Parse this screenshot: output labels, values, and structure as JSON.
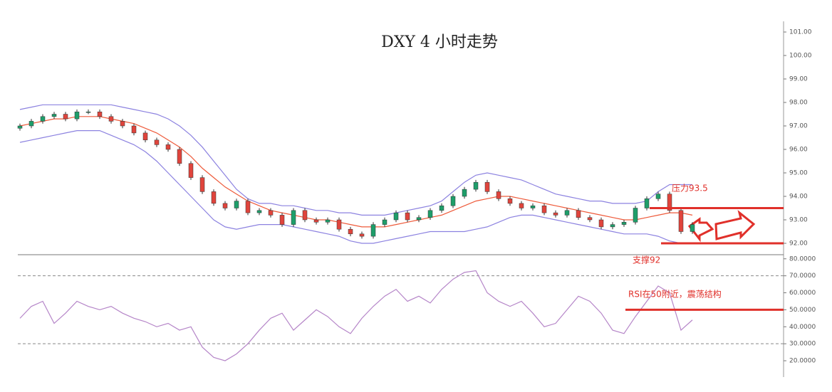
{
  "chart_data": [
    {
      "type": "candlestick",
      "title": "DXY 4 小时走势",
      "open": [
        96.9,
        97.0,
        97.2,
        97.4,
        97.5,
        97.3,
        97.6,
        97.6,
        97.4,
        97.2,
        97.0,
        96.7,
        96.4,
        96.2,
        96.0,
        95.4,
        94.8,
        94.2,
        93.7,
        93.5,
        93.8,
        93.3,
        93.4,
        93.2,
        92.8,
        93.4,
        93.0,
        92.9,
        93.0,
        92.6,
        92.4,
        92.3,
        92.8,
        93.0,
        93.3,
        93.0,
        93.1,
        93.4,
        93.6,
        94.0,
        94.3,
        94.6,
        94.2,
        93.9,
        93.7,
        93.5,
        93.6,
        93.3,
        93.2,
        93.4,
        93.1,
        93.0,
        92.7,
        92.8,
        92.9,
        93.5,
        93.9,
        94.1,
        93.4,
        92.5
      ],
      "high": [
        97.1,
        97.3,
        97.5,
        97.6,
        97.6,
        97.7,
        97.7,
        97.7,
        97.5,
        97.3,
        97.1,
        96.8,
        96.5,
        96.3,
        96.1,
        95.5,
        94.9,
        94.3,
        93.8,
        93.9,
        93.9,
        93.5,
        93.5,
        93.3,
        93.5,
        93.5,
        93.1,
        93.1,
        93.1,
        92.7,
        92.5,
        92.9,
        93.1,
        93.4,
        93.4,
        93.2,
        93.5,
        93.7,
        94.1,
        94.4,
        94.7,
        94.7,
        94.3,
        94.0,
        93.8,
        93.7,
        93.7,
        93.4,
        93.5,
        93.5,
        93.2,
        93.1,
        92.9,
        93.0,
        93.6,
        94.0,
        94.2,
        94.2,
        93.5,
        92.9
      ],
      "low": [
        96.8,
        96.9,
        97.1,
        97.3,
        97.2,
        97.2,
        97.5,
        97.3,
        97.1,
        96.9,
        96.6,
        96.3,
        96.1,
        95.9,
        95.3,
        94.7,
        94.1,
        93.6,
        93.4,
        93.4,
        93.2,
        93.2,
        93.1,
        92.7,
        92.7,
        92.9,
        92.8,
        92.8,
        92.5,
        92.3,
        92.2,
        92.2,
        92.7,
        92.9,
        92.9,
        92.9,
        93.0,
        93.3,
        93.5,
        93.9,
        94.2,
        94.1,
        93.8,
        93.6,
        93.4,
        93.4,
        93.2,
        93.1,
        93.1,
        93.0,
        92.9,
        92.6,
        92.6,
        92.7,
        92.8,
        93.4,
        93.8,
        93.3,
        92.4,
        92.4
      ],
      "close": [
        97.0,
        97.2,
        97.4,
        97.5,
        97.3,
        97.6,
        97.6,
        97.4,
        97.2,
        97.0,
        96.7,
        96.4,
        96.2,
        96.0,
        95.4,
        94.8,
        94.2,
        93.7,
        93.5,
        93.8,
        93.3,
        93.4,
        93.2,
        92.8,
        93.4,
        93.0,
        92.9,
        93.0,
        92.6,
        92.4,
        92.3,
        92.8,
        93.0,
        93.3,
        93.0,
        93.1,
        93.4,
        93.6,
        94.0,
        94.3,
        94.6,
        94.2,
        93.9,
        93.7,
        93.5,
        93.6,
        93.3,
        93.2,
        93.4,
        93.1,
        93.0,
        92.7,
        92.8,
        92.9,
        93.5,
        93.9,
        94.1,
        93.4,
        92.5,
        92.8
      ],
      "up_color": "#1e9e6a",
      "down_color": "#e0443c",
      "series": [
        {
          "color": "#8c82e0",
          "values": [
            97.7,
            97.8,
            97.9,
            97.9,
            97.9,
            97.9,
            97.9,
            97.9,
            97.9,
            97.8,
            97.7,
            97.6,
            97.5,
            97.3,
            97.0,
            96.6,
            96.1,
            95.5,
            94.9,
            94.3,
            93.9,
            93.7,
            93.7,
            93.6,
            93.6,
            93.5,
            93.4,
            93.4,
            93.3,
            93.3,
            93.2,
            93.2,
            93.2,
            93.3,
            93.4,
            93.5,
            93.6,
            93.8,
            94.2,
            94.6,
            94.9,
            95.0,
            94.9,
            94.8,
            94.7,
            94.5,
            94.3,
            94.1,
            94.0,
            93.9,
            93.8,
            93.8,
            93.7,
            93.7,
            93.7,
            93.8,
            94.2,
            94.5,
            94.5,
            94.5
          ]
        },
        {
          "color": "#ee5a3a",
          "values": [
            97.0,
            97.1,
            97.2,
            97.3,
            97.3,
            97.4,
            97.4,
            97.4,
            97.3,
            97.2,
            97.1,
            96.9,
            96.7,
            96.4,
            96.1,
            95.7,
            95.2,
            94.8,
            94.4,
            94.1,
            93.8,
            93.6,
            93.4,
            93.3,
            93.2,
            93.1,
            93.0,
            93.0,
            92.9,
            92.8,
            92.7,
            92.7,
            92.7,
            92.8,
            92.9,
            93.0,
            93.1,
            93.2,
            93.4,
            93.6,
            93.8,
            93.9,
            94.0,
            94.0,
            93.9,
            93.8,
            93.7,
            93.6,
            93.5,
            93.4,
            93.3,
            93.2,
            93.1,
            93.0,
            93.0,
            93.1,
            93.2,
            93.3,
            93.3,
            93.2
          ]
        },
        {
          "color": "#8c82e0",
          "values": [
            96.3,
            96.4,
            96.5,
            96.6,
            96.7,
            96.8,
            96.8,
            96.8,
            96.6,
            96.4,
            96.2,
            95.9,
            95.5,
            95.0,
            94.5,
            94.0,
            93.5,
            93.0,
            92.7,
            92.6,
            92.7,
            92.8,
            92.8,
            92.8,
            92.7,
            92.6,
            92.5,
            92.4,
            92.3,
            92.1,
            92.0,
            92.0,
            92.1,
            92.2,
            92.3,
            92.4,
            92.5,
            92.5,
            92.5,
            92.5,
            92.6,
            92.7,
            92.9,
            93.1,
            93.2,
            93.2,
            93.1,
            93.0,
            92.9,
            92.8,
            92.7,
            92.6,
            92.5,
            92.4,
            92.4,
            92.4,
            92.3,
            92.1,
            92.0,
            92.0
          ]
        }
      ],
      "ylim": [
        91.5,
        102
      ],
      "yticks": [
        {
          "value": 92,
          "label": "92.00"
        },
        {
          "value": 93,
          "label": "93.00"
        },
        {
          "value": 94,
          "label": "94.00"
        },
        {
          "value": 95,
          "label": "95.00"
        },
        {
          "value": 96,
          "label": "96.00"
        },
        {
          "value": 97,
          "label": "97.00"
        },
        {
          "value": 98,
          "label": "98.00"
        },
        {
          "value": 99,
          "label": "99.00"
        },
        {
          "value": 100,
          "label": "100.00"
        },
        {
          "value": 101,
          "label": "101.00"
        }
      ],
      "annotations": [
        {
          "text": "压力93.5",
          "value": 93.5,
          "color": "#e0302a"
        },
        {
          "text": "支撑92",
          "value": 92,
          "color": "#e0302a"
        }
      ]
    },
    {
      "type": "line",
      "values": [
        45,
        52,
        55,
        42,
        48,
        55,
        52,
        50,
        52,
        48,
        45,
        43,
        40,
        42,
        38,
        40,
        28,
        22,
        20,
        24,
        30,
        38,
        45,
        48,
        38,
        44,
        50,
        46,
        40,
        36,
        45,
        52,
        58,
        62,
        55,
        58,
        54,
        62,
        68,
        72,
        73,
        60,
        55,
        52,
        55,
        48,
        40,
        42,
        50,
        58,
        55,
        48,
        38,
        36,
        46,
        55,
        64,
        60,
        38,
        44
      ],
      "color": "#b585c8",
      "ylim": [
        15,
        82
      ],
      "yticks": [
        {
          "value": 20,
          "label": "20.0000"
        },
        {
          "value": 30,
          "label": "30.0000"
        },
        {
          "value": 40,
          "label": "40.0000"
        },
        {
          "value": 50,
          "label": "50.0000"
        },
        {
          "value": 60,
          "label": "60.0000"
        },
        {
          "value": 70,
          "label": "70.0000"
        },
        {
          "value": 80,
          "label": "80.0000"
        }
      ],
      "levels": [
        70,
        30
      ],
      "annotations": [
        {
          "text": "RSI在50附近，震荡结构",
          "value": 50,
          "color": "#e0302a"
        }
      ]
    }
  ]
}
